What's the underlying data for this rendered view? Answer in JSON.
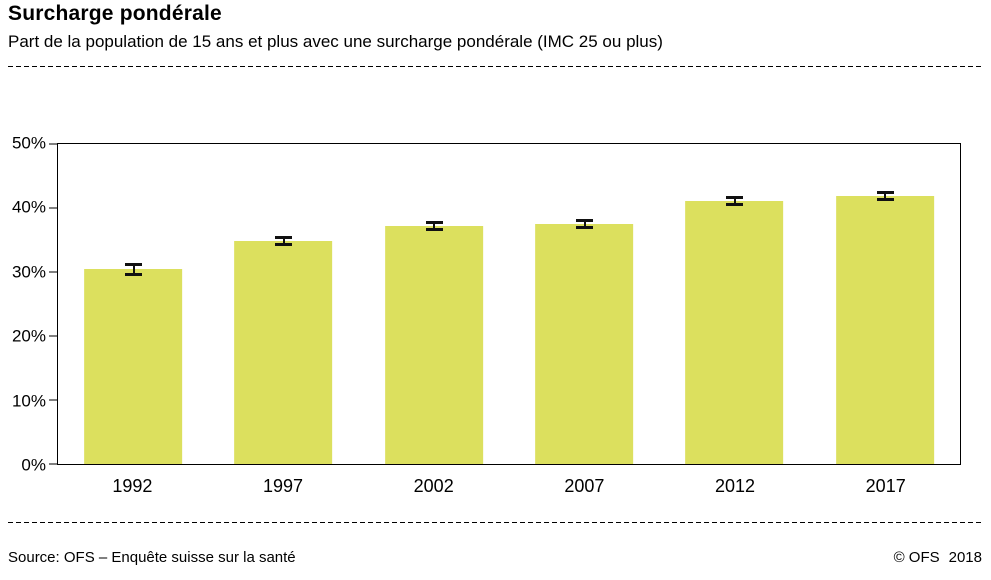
{
  "header": {
    "title": "Surcharge pondérale",
    "subtitle": "Part de la population de 15 ans et plus avec une surcharge pondérale (IMC 25 ou plus)"
  },
  "footer": {
    "source": "Source: OFS – Enquête suisse sur la santé",
    "copyright": "© OFS",
    "year": "2018"
  },
  "chart_data": {
    "type": "bar",
    "title": "Surcharge pondérale",
    "subtitle": "Part de la population de 15 ans et plus avec une surcharge pondérale (IMC 25 ou plus)",
    "categories": [
      "1992",
      "1997",
      "2002",
      "2007",
      "2012",
      "2017"
    ],
    "values": [
      30.4,
      34.9,
      37.2,
      37.5,
      41.1,
      41.9
    ],
    "error_low": [
      29.4,
      34.1,
      36.4,
      36.7,
      40.3,
      41.1
    ],
    "error_high": [
      31.4,
      35.7,
      38.0,
      38.3,
      41.9,
      42.7
    ],
    "unit": "%",
    "ylim": [
      0,
      50
    ],
    "yticks": [
      0,
      10,
      20,
      30,
      40,
      50
    ],
    "ytick_suffix": "%",
    "xlabel": "",
    "ylabel": "",
    "grid": false,
    "legend": false,
    "bar_color": "#dce05e",
    "error_bar_color": "#111111",
    "axis_color": "#000000"
  }
}
